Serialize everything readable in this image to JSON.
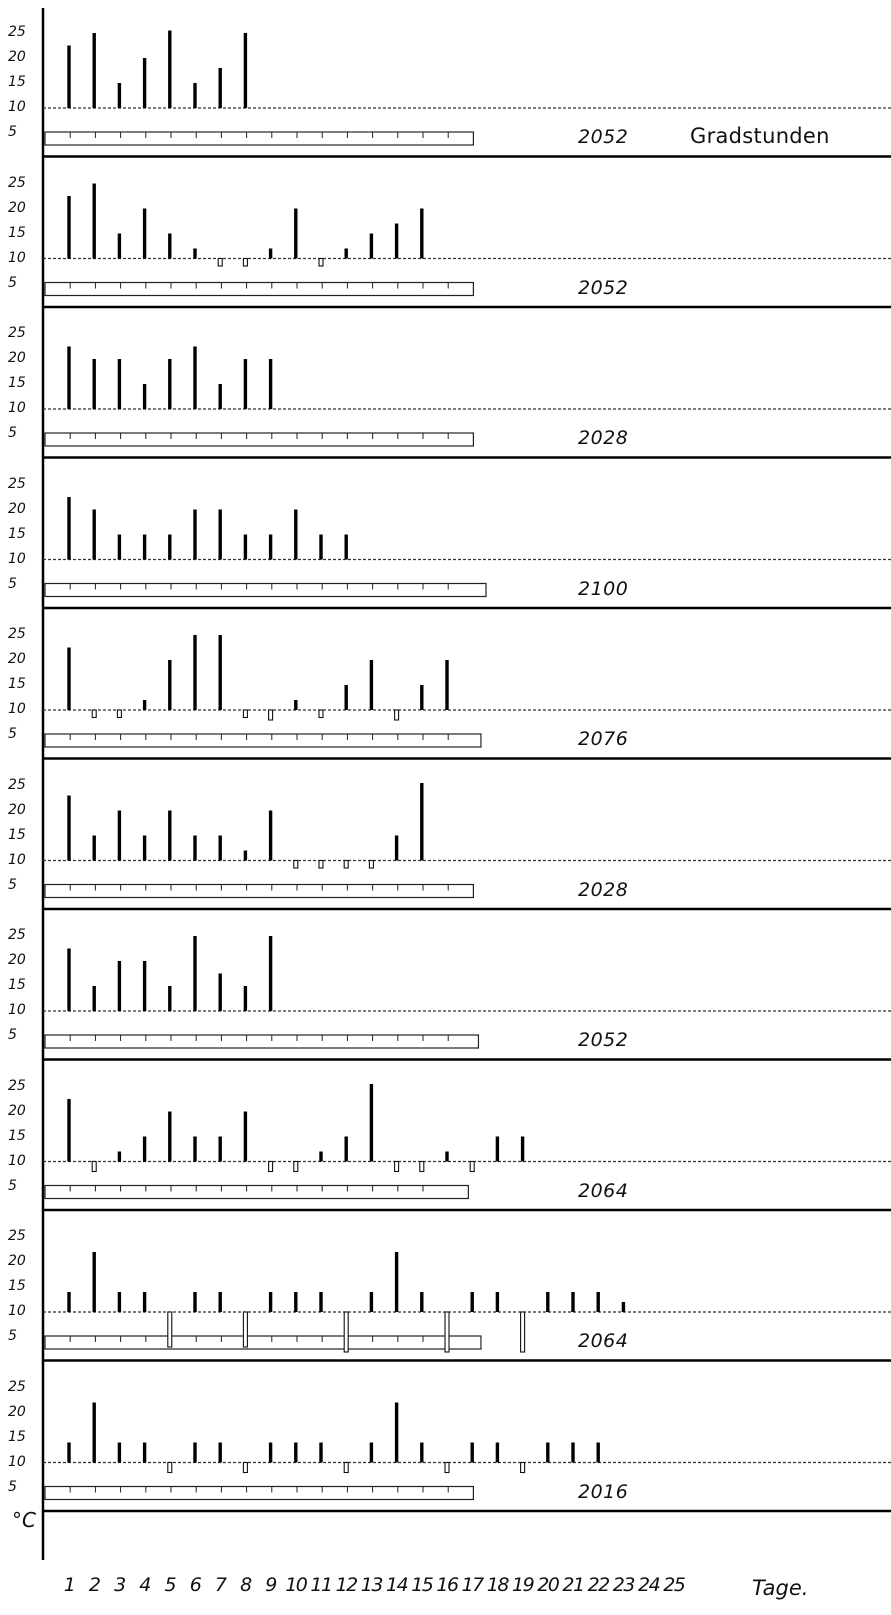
{
  "chart_data": {
    "type": "bar",
    "panel_label": "Gradstunden",
    "y_unit": "°C",
    "xlabel": "Tage.",
    "y_ticks": [
      25,
      20,
      15,
      10,
      5
    ],
    "threshold": 10,
    "ylim": [
      0,
      27
    ],
    "days": [
      1,
      2,
      3,
      4,
      5,
      6,
      7,
      8,
      9,
      10,
      11,
      12,
      13,
      14,
      15,
      16,
      17,
      18,
      19,
      20,
      21,
      22,
      23,
      24,
      25
    ],
    "x_tick_labels": [
      "1",
      "2",
      "3",
      "4",
      "5",
      "6",
      "7",
      "8",
      "9",
      "10",
      "11",
      "12",
      "13",
      "14",
      "15",
      "16",
      "17",
      "18",
      "19",
      "20",
      "21",
      "22",
      "23",
      "24",
      "25"
    ],
    "panels": [
      {
        "total": "2052",
        "days_boxes": 17,
        "values": [
          22.5,
          25,
          15,
          20,
          25.5,
          15,
          18,
          25
        ]
      },
      {
        "total": "2052",
        "days_boxes": 17,
        "values": [
          22.5,
          25,
          15,
          20,
          15,
          12,
          8.5,
          8.5,
          12,
          20,
          8.5,
          12,
          15,
          17,
          20
        ]
      },
      {
        "total": "2028",
        "days_boxes": 17,
        "values": [
          22.5,
          20,
          20,
          15,
          20,
          22.5,
          15,
          20,
          20
        ]
      },
      {
        "total": "2100",
        "days_boxes": 17.5,
        "values": [
          22.5,
          20,
          15,
          15,
          15,
          20,
          20,
          15,
          15,
          20,
          15,
          15
        ]
      },
      {
        "total": "2076",
        "days_boxes": 17.3,
        "values": [
          22.5,
          8.5,
          8.5,
          12,
          20,
          25,
          25,
          8.5,
          8,
          12,
          8.5,
          15,
          20,
          8,
          15,
          20
        ]
      },
      {
        "total": "2028",
        "days_boxes": 17,
        "values": [
          23,
          15,
          20,
          15,
          20,
          15,
          15,
          12,
          20,
          8.5,
          8.5,
          8.5,
          8.5,
          15,
          25.5
        ]
      },
      {
        "total": "2052",
        "days_boxes": 17.2,
        "values": [
          22.5,
          15,
          20,
          20,
          15,
          25,
          17.5,
          15,
          25
        ]
      },
      {
        "total": "2064",
        "days_boxes": 16.8,
        "values": [
          22.5,
          8,
          12,
          15,
          20,
          15,
          15,
          20,
          8,
          8,
          12,
          15,
          25.5,
          8,
          8,
          12,
          8,
          15,
          15
        ]
      },
      {
        "total": "2064",
        "days_boxes": 17.3,
        "values": [
          14,
          22,
          14,
          14,
          3,
          14,
          14,
          3,
          14,
          14,
          14,
          2,
          14,
          22,
          14,
          2,
          14,
          14,
          2,
          14,
          14,
          14,
          12
        ]
      },
      {
        "total": "2016",
        "days_boxes": 17,
        "values": [
          14,
          22,
          14,
          14,
          8,
          14,
          14,
          8,
          14,
          14,
          14,
          8,
          14,
          22,
          14,
          8,
          14,
          14,
          8,
          14,
          14,
          14
        ]
      }
    ]
  }
}
